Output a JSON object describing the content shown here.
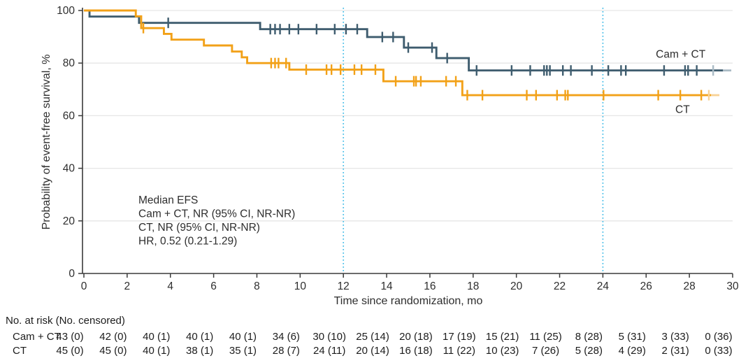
{
  "figure_title": "",
  "colors": {
    "cam_ct": "#3E5C6E",
    "cam_ct_light": "#A9BAC4",
    "ct": "#F2A118",
    "ct_light": "#F8D296",
    "reference_line": "#45BDE8",
    "grid": "#E6E6E6",
    "axis": "#3A3A3A",
    "text": "#2E2E2E",
    "table_text": "#1C1C1C"
  },
  "chart_data": {
    "type": "line",
    "subtype": "kaplan-meier-step",
    "title": "",
    "xlabel": "Time since randomization, mo",
    "ylabel": "Probability of event-free survival, %",
    "xlim": [
      0,
      30
    ],
    "ylim": [
      0,
      100
    ],
    "xticks": [
      0,
      2,
      4,
      6,
      8,
      10,
      12,
      14,
      16,
      18,
      20,
      22,
      24,
      26,
      28,
      30
    ],
    "yticks": [
      0,
      20,
      40,
      60,
      80,
      100
    ],
    "grid": "horizontal",
    "reference_lines_x": [
      12,
      24
    ],
    "series": [
      {
        "name": "Cam + CT",
        "steps": [
          [
            0,
            100
          ],
          [
            0.26,
            97.7
          ],
          [
            2.55,
            95.3
          ],
          [
            8.15,
            92.9
          ],
          [
            13.1,
            89.9
          ],
          [
            14.8,
            85.9
          ],
          [
            16.3,
            81.9
          ],
          [
            17.8,
            77.2
          ]
        ],
        "end_time": 29.55,
        "censors": [
          [
            3.9,
            95.3
          ],
          [
            8.62,
            92.9
          ],
          [
            8.84,
            92.9
          ],
          [
            9.07,
            92.9
          ],
          [
            9.5,
            92.9
          ],
          [
            9.92,
            92.9
          ],
          [
            10.76,
            92.9
          ],
          [
            11.6,
            92.9
          ],
          [
            12.12,
            92.9
          ],
          [
            12.64,
            92.9
          ],
          [
            13.8,
            89.9
          ],
          [
            14.3,
            89.9
          ],
          [
            15.0,
            85.9
          ],
          [
            16.1,
            85.9
          ],
          [
            16.8,
            81.9
          ],
          [
            18.16,
            77.2
          ],
          [
            19.78,
            77.2
          ],
          [
            20.64,
            77.2
          ],
          [
            21.28,
            77.2
          ],
          [
            21.41,
            77.2
          ],
          [
            21.55,
            77.2
          ],
          [
            22.15,
            77.2
          ],
          [
            22.52,
            77.2
          ],
          [
            23.49,
            77.2
          ],
          [
            24.25,
            77.2
          ],
          [
            24.84,
            77.2
          ],
          [
            25.06,
            77.2
          ],
          [
            26.83,
            77.2
          ],
          [
            27.8,
            77.2
          ],
          [
            27.94,
            77.2
          ],
          [
            28.34,
            77.2
          ]
        ],
        "light_censor": [
          29.1,
          77.2
        ],
        "label_at": [
          26.45,
          82.0
        ]
      },
      {
        "name": "CT",
        "steps": [
          [
            0,
            100
          ],
          [
            2.4,
            97.8
          ],
          [
            2.65,
            93.3
          ],
          [
            3.7,
            91.1
          ],
          [
            4.05,
            88.9
          ],
          [
            5.55,
            86.7
          ],
          [
            6.85,
            84.4
          ],
          [
            7.3,
            82.2
          ],
          [
            7.55,
            80.0
          ],
          [
            9.5,
            77.5
          ],
          [
            13.85,
            73.1
          ],
          [
            17.5,
            67.8
          ]
        ],
        "end_time": 29.0,
        "censors": [
          [
            2.75,
            93.3
          ],
          [
            8.66,
            80.0
          ],
          [
            8.84,
            80.0
          ],
          [
            9.0,
            80.0
          ],
          [
            9.35,
            80.0
          ],
          [
            10.28,
            77.5
          ],
          [
            11.22,
            77.5
          ],
          [
            11.45,
            77.5
          ],
          [
            11.87,
            77.5
          ],
          [
            12.51,
            77.5
          ],
          [
            12.84,
            77.5
          ],
          [
            13.48,
            77.5
          ],
          [
            14.42,
            73.1
          ],
          [
            15.26,
            73.1
          ],
          [
            15.36,
            73.1
          ],
          [
            15.58,
            73.1
          ],
          [
            16.75,
            73.1
          ],
          [
            17.2,
            73.1
          ],
          [
            17.73,
            67.8
          ],
          [
            18.43,
            67.8
          ],
          [
            20.48,
            67.8
          ],
          [
            20.91,
            67.8
          ],
          [
            21.88,
            67.8
          ],
          [
            22.26,
            67.8
          ],
          [
            22.38,
            67.8
          ],
          [
            24.03,
            67.8
          ],
          [
            26.56,
            67.8
          ],
          [
            27.58,
            67.8
          ],
          [
            28.55,
            67.8
          ]
        ],
        "light_censor": [
          28.9,
          67.8
        ],
        "label_at": [
          27.35,
          61.0
        ]
      }
    ],
    "annotation": {
      "lines": [
        "Median EFS",
        "Cam + CT, NR (95% CI, NR-NR)",
        "CT, NR (95% CI, NR-NR)",
        "HR, 0.52 (0.21-1.29)"
      ]
    }
  },
  "risk_table": {
    "header": "No. at risk (No. censored)",
    "times": [
      0,
      2,
      4,
      6,
      8,
      10,
      12,
      14,
      16,
      18,
      20,
      22,
      24,
      26,
      28,
      30
    ],
    "rows": [
      {
        "label": "Cam + CT",
        "values": [
          "43 (0)",
          "42 (0)",
          "40 (1)",
          "40 (1)",
          "40 (1)",
          "34 (6)",
          "30 (10)",
          "25 (14)",
          "20 (18)",
          "17 (19)",
          "15 (21)",
          "11 (25)",
          "8 (28)",
          "5 (31)",
          "3 (33)",
          "0 (36)"
        ]
      },
      {
        "label": "CT",
        "values": [
          "45 (0)",
          "45 (0)",
          "40 (1)",
          "38 (1)",
          "35 (1)",
          "28 (7)",
          "24 (11)",
          "20 (14)",
          "16 (18)",
          "11 (22)",
          "10 (23)",
          "7 (26)",
          "5 (28)",
          "4 (29)",
          "2 (31)",
          "0 (33)"
        ]
      }
    ]
  }
}
